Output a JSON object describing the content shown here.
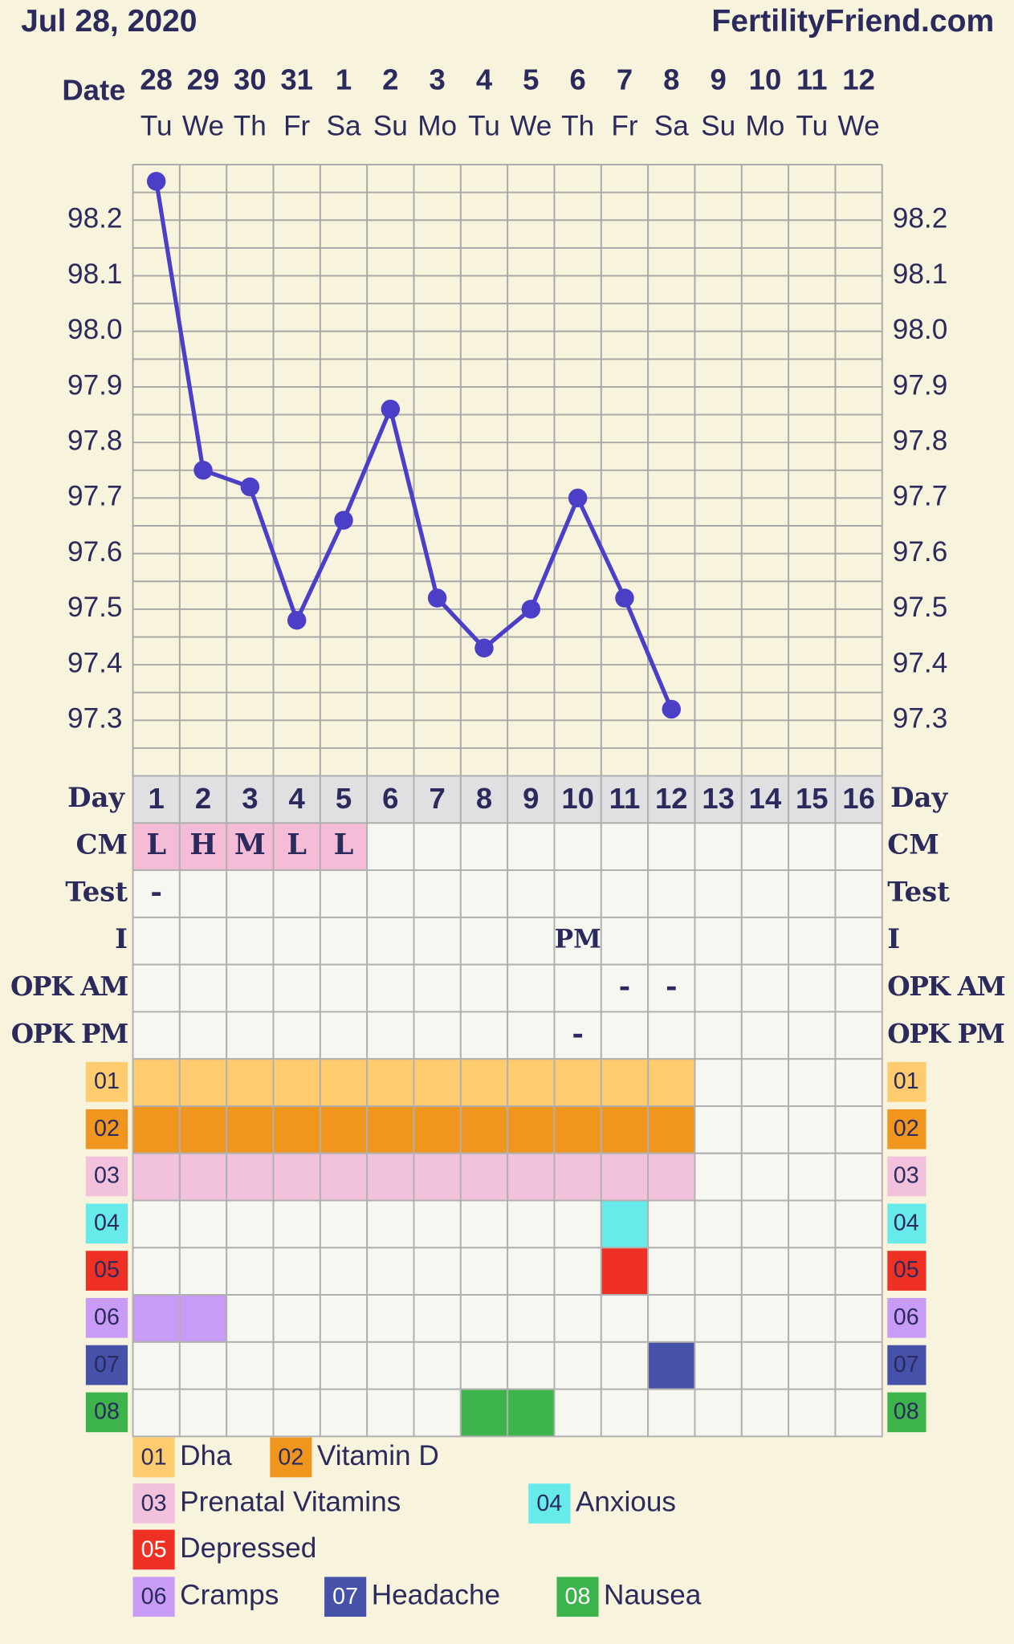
{
  "header": {
    "date": "Jul 28, 2020",
    "site": "FertilityFriend.com",
    "date_label": "Date"
  },
  "chart_data": {
    "type": "line",
    "categories": [
      "28",
      "29",
      "30",
      "31",
      "1",
      "2",
      "3",
      "4",
      "5",
      "6",
      "7",
      "8",
      "9",
      "10",
      "11",
      "12"
    ],
    "weekdays": [
      "Tu",
      "We",
      "Th",
      "Fr",
      "Sa",
      "Su",
      "Mo",
      "Tu",
      "We",
      "Th",
      "Fr",
      "Sa",
      "Su",
      "Mo",
      "Tu",
      "We"
    ],
    "series": [
      {
        "color": "#4b3fc8",
        "values": [
          98.27,
          97.75,
          97.72,
          97.48,
          97.66,
          97.86,
          97.52,
          97.43,
          97.5,
          97.7,
          97.52,
          97.32,
          null,
          null,
          null,
          null
        ]
      }
    ],
    "ylim": [
      97.2,
      98.3
    ],
    "yticks": [
      97.3,
      97.4,
      97.5,
      97.6,
      97.7,
      97.8,
      97.9,
      {
        "value": 98,
        "label": "98.0"
      },
      98.1,
      98.2
    ],
    "grid_lines": [
      97.2,
      97.25,
      97.3,
      97.35,
      97.4,
      97.45,
      97.5,
      97.55,
      97.6,
      97.65,
      97.7,
      97.75,
      97.8,
      97.85,
      97.9,
      97.95,
      98,
      98.05,
      98.1,
      98.15,
      98.2,
      98.25,
      98.3
    ],
    "grid": true
  },
  "day_row": {
    "label": "Day",
    "days": [
      1,
      2,
      3,
      4,
      5,
      6,
      7,
      8,
      9,
      10,
      11,
      12,
      13,
      14,
      15,
      16
    ]
  },
  "rows": [
    {
      "label": "CM",
      "fill": "#f4bcd6",
      "entries": [
        {
          "day": 1,
          "text": "L"
        },
        {
          "day": 2,
          "text": "H"
        },
        {
          "day": 3,
          "text": "M"
        },
        {
          "day": 4,
          "text": "L"
        },
        {
          "day": 5,
          "text": "L"
        }
      ]
    },
    {
      "label": "Test",
      "entries": [
        {
          "day": 1,
          "text": "-"
        }
      ]
    },
    {
      "label": "I",
      "entries": [
        {
          "day": 10,
          "text": "PM"
        }
      ]
    },
    {
      "label": "OPK AM",
      "entries": [
        {
          "day": 11,
          "text": "-"
        },
        {
          "day": 12,
          "text": "-"
        }
      ]
    },
    {
      "label": "OPK PM",
      "entries": [
        {
          "day": 10,
          "text": "-"
        }
      ]
    }
  ],
  "legend": [
    {
      "code": "01",
      "label": "Dha",
      "color": "#fecb6e",
      "days": [
        1,
        2,
        3,
        4,
        5,
        6,
        7,
        8,
        9,
        10,
        11,
        12
      ]
    },
    {
      "code": "02",
      "label": "Vitamin D",
      "color": "#f0961e",
      "days": [
        1,
        2,
        3,
        4,
        5,
        6,
        7,
        8,
        9,
        10,
        11,
        12
      ]
    },
    {
      "code": "03",
      "label": "Prenatal Vitamins",
      "color": "#f2c2dc",
      "days": [
        1,
        2,
        3,
        4,
        5,
        6,
        7,
        8,
        9,
        10,
        11,
        12
      ]
    },
    {
      "code": "04",
      "label": "Anxious",
      "color": "#66eaea",
      "days": [
        11
      ]
    },
    {
      "code": "05",
      "label": "Depressed",
      "color": "#ee3124",
      "days": [
        11
      ]
    },
    {
      "code": "06",
      "label": "Cramps",
      "color": "#c89cf6",
      "days": [
        1,
        2
      ]
    },
    {
      "code": "07",
      "label": "Headache",
      "color": "#4652aa",
      "days": [
        12
      ]
    },
    {
      "code": "08",
      "label": "Nausea",
      "color": "#3cb44b",
      "days": [
        8,
        9
      ]
    }
  ]
}
